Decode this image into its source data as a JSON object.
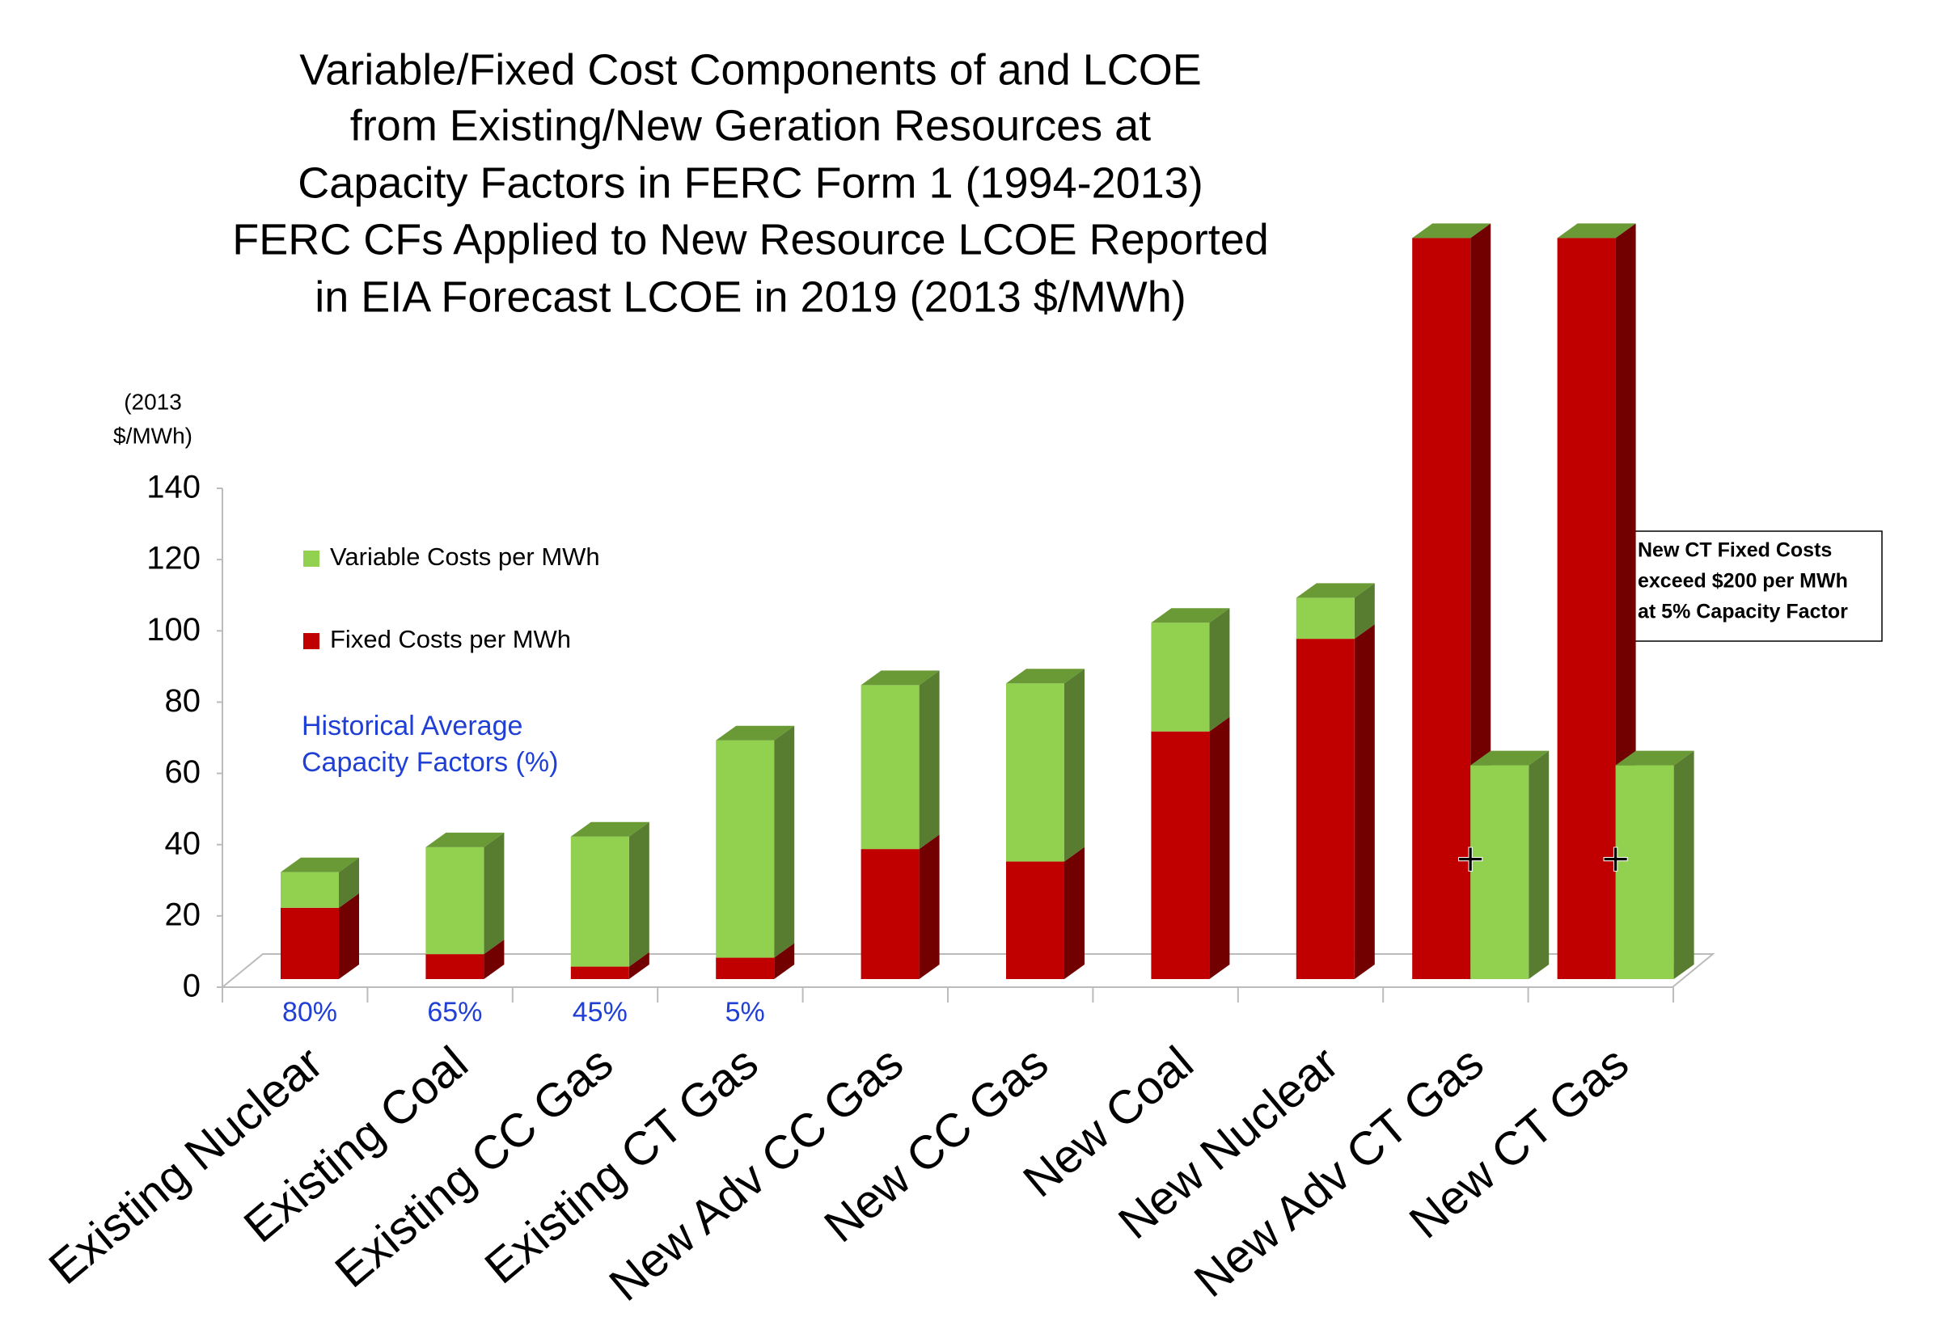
{
  "chart_data": {
    "type": "stacked_bar_3d",
    "title": [
      "Variable/Fixed Cost Components of and LCOE",
      "from Existing/New Geration Resources at",
      "Capacity Factors in FERC Form 1 (1994-2013)",
      "FERC CFs Applied to New Resource LCOE Reported",
      "in EIA Forecast LCOE in 2019  (2013 $/MWh)"
    ],
    "y_axis_label": [
      "(2013",
      "$/MWh)"
    ],
    "categories": [
      "Existing Nuclear",
      "Existing Coal",
      "Existing CC Gas",
      "Existing CT Gas",
      "New Adv CC Gas",
      "New CC Gas",
      "New Coal",
      "New Nuclear",
      "New Adv CT Gas",
      "New CT Gas"
    ],
    "series": [
      {
        "name": "Fixed Costs per MWh",
        "color": "#c00000",
        "values": [
          20,
          7,
          3.5,
          6,
          36.5,
          33,
          69.5,
          95.5,
          208,
          208
        ]
      },
      {
        "name": "Variable Costs per MWh",
        "color": "#92d050",
        "values": [
          10,
          30,
          36.5,
          61,
          46,
          50,
          30.5,
          11.5,
          60,
          60
        ]
      }
    ],
    "ylim": [
      0,
      140
    ],
    "yticks": [
      0,
      20,
      40,
      60,
      80,
      100,
      120,
      140
    ],
    "capacity_factor_title": [
      "Historical Average",
      "Capacity Factors (%)"
    ],
    "capacity_factors": [
      "80%",
      "65%",
      "45%",
      "5%",
      null,
      null,
      null,
      null,
      null,
      null
    ],
    "callout": [
      "New CT Fixed Costs",
      "exceed $200 per MWh",
      "at 5% Capacity Factor"
    ]
  }
}
